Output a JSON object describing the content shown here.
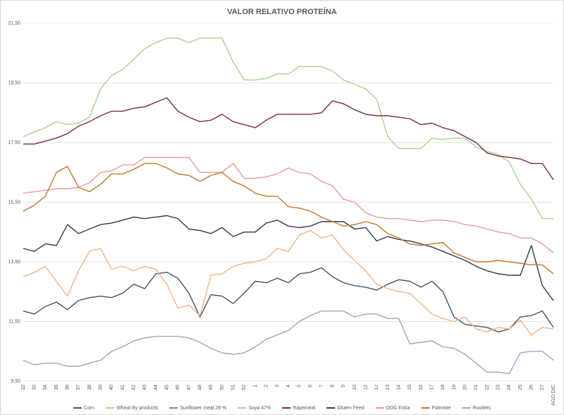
{
  "chart_data": {
    "type": "line",
    "title": "VALOR RELATIVO PROTEÍNA",
    "categories": [
      "32",
      "33",
      "34",
      "35",
      "36",
      "37",
      "38",
      "39",
      "40",
      "41",
      "42",
      "43",
      "44",
      "45",
      "46",
      "47",
      "48",
      "49",
      "50",
      "51",
      "52",
      "1",
      "2",
      "3",
      "4",
      "5",
      "6",
      "7",
      "8",
      "9",
      "10",
      "11",
      "12",
      "13",
      "14",
      "15",
      "16",
      "17",
      "18",
      "19",
      "20",
      "21",
      "22",
      "23",
      "24",
      "25",
      "26",
      "27",
      "AGO DIC"
    ],
    "ylim": [
      9.5,
      21.5
    ],
    "yticks": [
      {
        "value": 9.5,
        "label": "9,50"
      },
      {
        "value": 11.5,
        "label": "11,50"
      },
      {
        "value": 13.5,
        "label": "13,50"
      },
      {
        "value": 15.5,
        "label": "15,50"
      },
      {
        "value": 17.5,
        "label": "17,50"
      },
      {
        "value": 19.5,
        "label": "19,50"
      },
      {
        "value": 21.5,
        "label": "21,50"
      }
    ],
    "grid": true,
    "legend": "bottom",
    "series": [
      {
        "name": "Corn",
        "color": "#44546a",
        "values": [
          11.85,
          11.75,
          12.0,
          12.15,
          11.9,
          12.2,
          12.3,
          12.35,
          12.3,
          12.45,
          12.75,
          12.6,
          13.1,
          13.15,
          12.95,
          12.45,
          11.65,
          12.4,
          12.35,
          12.1,
          12.45,
          12.85,
          12.8,
          12.95,
          12.8,
          13.1,
          13.15,
          13.3,
          13.0,
          12.8,
          12.7,
          12.65,
          12.55,
          12.75,
          12.9,
          12.85,
          12.65,
          12.85,
          12.5,
          11.65,
          11.4,
          11.35,
          11.3,
          11.15,
          11.25,
          11.65,
          11.7,
          11.85,
          11.3
        ]
      },
      {
        "name": "Wheat By products",
        "color": "#f4b183",
        "values": [
          13.0,
          13.15,
          13.35,
          12.85,
          12.35,
          13.2,
          13.85,
          13.95,
          13.25,
          13.35,
          13.2,
          13.35,
          13.25,
          12.75,
          11.95,
          12.05,
          11.7,
          13.05,
          13.1,
          13.35,
          13.45,
          13.5,
          13.6,
          13.95,
          13.85,
          14.4,
          14.55,
          14.3,
          14.4,
          13.9,
          13.55,
          13.2,
          12.75,
          12.6,
          12.5,
          12.45,
          12.1,
          11.75,
          11.6,
          11.5,
          11.65,
          11.25,
          11.15,
          11.3,
          11.25,
          11.55,
          11.05,
          11.3,
          11.25
        ]
      },
      {
        "name": "Sunflower meal 28 %",
        "color": "#7f7f9f",
        "values": [
          null,
          null,
          null,
          null,
          null,
          null,
          null,
          null,
          null,
          null,
          null,
          null,
          null,
          null,
          null,
          null,
          null,
          null,
          null,
          null,
          null,
          null,
          null,
          null,
          null,
          null,
          null,
          null,
          null,
          null,
          null,
          null,
          null,
          null,
          null,
          null,
          null,
          null,
          null,
          null,
          null,
          null,
          null,
          null,
          null,
          null,
          null,
          null,
          null
        ]
      },
      {
        "name": "Soya 47%",
        "color": "#a9d18e",
        "values": [
          17.7,
          17.85,
          18.0,
          18.2,
          18.1,
          18.15,
          18.35,
          19.3,
          19.75,
          19.95,
          20.3,
          20.65,
          20.85,
          21.0,
          21.0,
          20.85,
          21.0,
          21.0,
          21.0,
          20.2,
          19.6,
          19.6,
          19.65,
          19.8,
          19.8,
          20.05,
          20.05,
          20.05,
          19.9,
          19.6,
          19.45,
          19.3,
          18.95,
          17.7,
          17.3,
          17.3,
          17.3,
          17.65,
          17.6,
          17.65,
          17.65,
          17.35,
          17.2,
          17.1,
          16.85,
          16.1,
          15.6,
          14.95,
          14.95
        ]
      },
      {
        "name": "Rapemeal",
        "color": "#7b2c3a",
        "values": [
          17.45,
          17.45,
          17.55,
          17.65,
          17.8,
          18.05,
          18.2,
          18.4,
          18.55,
          18.55,
          18.65,
          18.7,
          18.85,
          19.0,
          18.55,
          18.35,
          18.2,
          18.25,
          18.45,
          18.2,
          18.1,
          18.0,
          18.25,
          18.45,
          18.45,
          18.45,
          18.45,
          18.5,
          18.9,
          18.8,
          18.6,
          18.45,
          18.4,
          18.4,
          18.35,
          18.3,
          18.1,
          18.15,
          18.0,
          17.9,
          17.7,
          17.5,
          17.15,
          17.05,
          17.0,
          16.95,
          16.8,
          16.8,
          16.25
        ]
      },
      {
        "name": "Gluten Feed",
        "color": "#2f3a4f",
        "values": [
          13.95,
          13.85,
          14.1,
          14.05,
          14.75,
          14.45,
          14.6,
          14.75,
          14.8,
          14.9,
          15.0,
          14.95,
          15.0,
          15.05,
          14.95,
          14.6,
          14.55,
          14.45,
          14.65,
          14.35,
          14.5,
          14.5,
          14.8,
          14.9,
          14.7,
          14.65,
          14.7,
          14.85,
          14.85,
          14.85,
          14.6,
          14.65,
          14.2,
          14.35,
          14.25,
          14.2,
          14.1,
          14.0,
          13.85,
          13.7,
          13.55,
          13.35,
          13.2,
          13.1,
          13.05,
          13.05,
          14.05,
          12.7,
          12.2
        ]
      },
      {
        "name": "DDG Extra",
        "color": "#e39a9f",
        "values": [
          15.8,
          15.85,
          15.9,
          15.95,
          15.95,
          16.0,
          16.15,
          16.5,
          16.55,
          16.75,
          16.75,
          17.0,
          17.0,
          17.0,
          17.0,
          17.0,
          16.5,
          16.5,
          16.5,
          16.8,
          16.3,
          16.3,
          16.35,
          16.45,
          16.65,
          16.5,
          16.45,
          16.2,
          16.05,
          15.6,
          15.5,
          15.15,
          15.0,
          14.95,
          14.95,
          14.9,
          14.85,
          14.9,
          14.9,
          14.85,
          14.75,
          14.7,
          14.6,
          14.5,
          14.45,
          14.3,
          14.3,
          14.1,
          13.8
        ]
      },
      {
        "name": "Palmiste",
        "color": "#c5762a",
        "values": [
          15.2,
          15.4,
          15.7,
          16.5,
          16.7,
          16.0,
          15.85,
          16.1,
          16.45,
          16.45,
          16.6,
          16.8,
          16.8,
          16.65,
          16.45,
          16.4,
          16.2,
          16.4,
          16.5,
          16.2,
          16.05,
          15.8,
          15.7,
          15.7,
          15.35,
          15.3,
          15.2,
          15.0,
          14.85,
          14.7,
          14.75,
          14.85,
          14.75,
          14.45,
          14.3,
          14.1,
          14.05,
          14.1,
          14.15,
          13.8,
          13.65,
          13.5,
          13.5,
          13.55,
          13.5,
          13.45,
          13.4,
          13.4,
          13.1
        ]
      },
      {
        "name": "Rootlets",
        "color": "#a99cc8",
        "values": [
          10.2,
          10.05,
          10.1,
          10.1,
          10.0,
          10.0,
          10.1,
          10.2,
          10.5,
          10.65,
          10.85,
          10.95,
          11.0,
          11.0,
          11.0,
          10.95,
          10.8,
          10.6,
          10.45,
          10.4,
          10.45,
          10.65,
          10.9,
          11.05,
          11.2,
          11.5,
          11.7,
          11.85,
          11.85,
          11.85,
          11.65,
          11.75,
          11.75,
          11.6,
          11.6,
          10.75,
          10.8,
          10.85,
          10.65,
          10.6,
          10.4,
          10.1,
          9.8,
          9.8,
          9.75,
          10.45,
          10.5,
          10.5,
          10.2
        ]
      }
    ]
  }
}
